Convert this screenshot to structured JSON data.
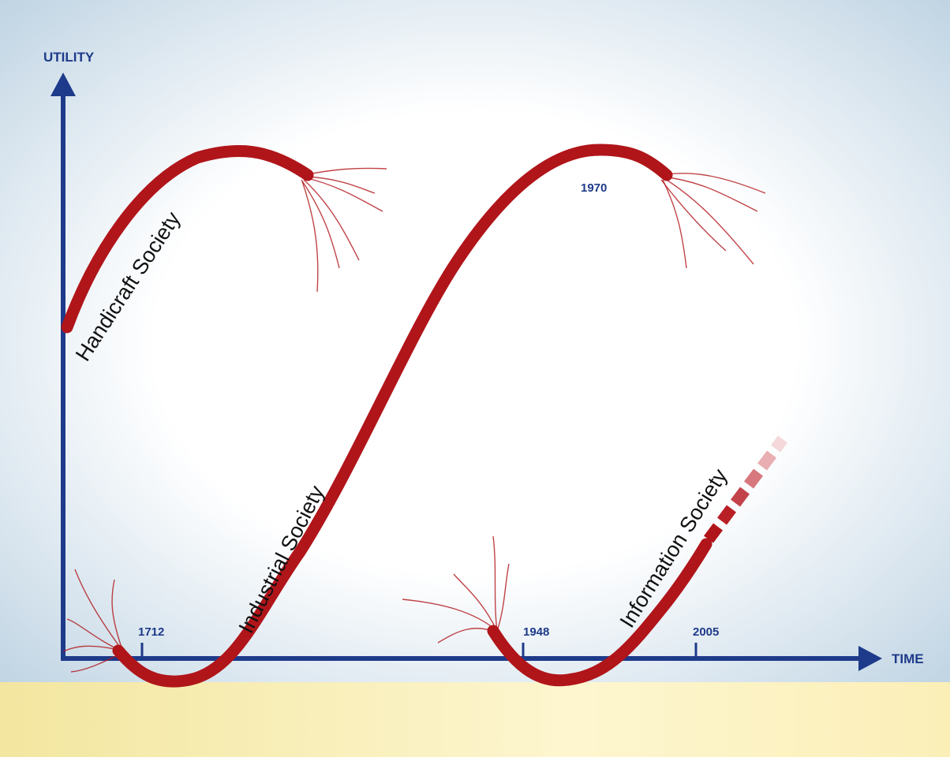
{
  "axes": {
    "y_label": "UTILITY",
    "x_label": "TIME"
  },
  "ticks": [
    "1712",
    "1948",
    "2005"
  ],
  "annotation": "1970",
  "curves": [
    {
      "label": "Handicraft Society"
    },
    {
      "label": "Industrial Society"
    },
    {
      "label": "Information Society"
    }
  ]
}
